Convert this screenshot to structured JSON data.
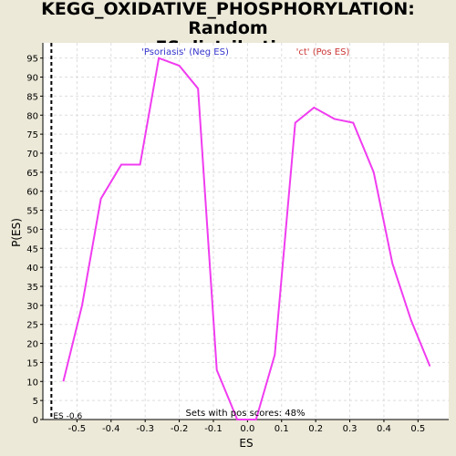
{
  "title_lines": [
    "KEGG_OXIDATIVE_PHOSPHORYLATION: Random",
    "ES distribution"
  ],
  "colors": {
    "background": "#ECE9D8",
    "plot_background": "#FFFFFF",
    "line": "#F03CF0",
    "grid": "#DDDDDD",
    "neg_label": "#3333CC",
    "pos_label": "#CC3333"
  },
  "chart_data": {
    "type": "line",
    "title": "KEGG_OXIDATIVE_PHOSPHORYLATION: Random ES distribution",
    "xlabel": "ES",
    "ylabel": "P(ES)",
    "xlim": [
      -0.6,
      0.59
    ],
    "ylim": [
      0,
      99
    ],
    "grid": true,
    "xticks": [
      -0.5,
      -0.4,
      -0.3,
      -0.2,
      -0.1,
      0.0,
      0.1,
      0.2,
      0.3,
      0.4,
      0.5
    ],
    "xtick_labels": [
      "-0.5",
      "-0.4",
      "-0.3",
      "-0.2",
      "-0.1",
      "0.0",
      "0.1",
      "0.2",
      "0.3",
      "0.4",
      "0.5"
    ],
    "yticks": [
      0,
      5,
      10,
      15,
      20,
      25,
      30,
      35,
      40,
      45,
      50,
      55,
      60,
      65,
      70,
      75,
      80,
      85,
      90,
      95
    ],
    "ytick_labels": [
      "0",
      "5",
      "10",
      "15",
      "20",
      "25",
      "30",
      "35",
      "40",
      "45",
      "50",
      "55",
      "60",
      "65",
      "70",
      "75",
      "80",
      "85",
      "90",
      "95"
    ],
    "series": [
      {
        "x": [
          -0.54,
          -0.485,
          -0.43,
          -0.37,
          -0.315,
          -0.26,
          -0.2,
          -0.145,
          -0.09,
          -0.03,
          0.025,
          0.08,
          0.14,
          0.195,
          0.255,
          0.31,
          0.37,
          0.425,
          0.48,
          0.535
        ],
        "y": [
          10,
          30,
          58,
          67,
          67,
          95,
          93,
          87,
          13,
          0,
          0,
          17,
          78,
          82,
          79,
          78,
          65,
          41,
          26,
          14
        ]
      }
    ],
    "marker": {
      "x": -0.575,
      "label": "ES -0.6"
    },
    "annotations": {
      "neg": "'Psoriasis' (Neg ES)",
      "pos": "'ct' (Pos ES)",
      "footer": "Sets with pos scores: 48%"
    }
  }
}
